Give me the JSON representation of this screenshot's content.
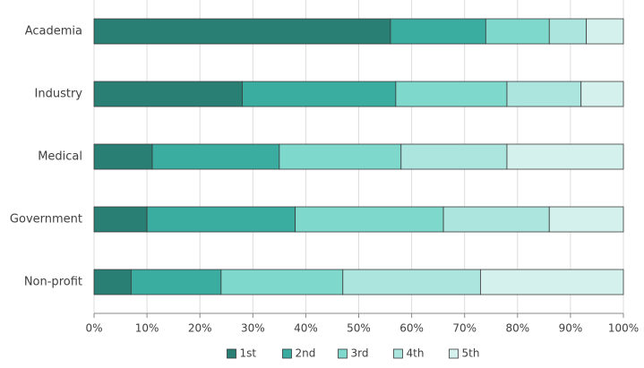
{
  "chart_data": {
    "type": "stacked-barh",
    "categories": [
      "Academia",
      "Industry",
      "Medical",
      "Government",
      "Non-profit"
    ],
    "series": [
      {
        "name": "1st",
        "color": "#2a7f74",
        "values": [
          56,
          28,
          11,
          10,
          7
        ]
      },
      {
        "name": "2nd",
        "color": "#3aada0",
        "values": [
          18,
          29,
          24,
          28,
          17
        ]
      },
      {
        "name": "3rd",
        "color": "#7fd8cc",
        "values": [
          12,
          21,
          23,
          28,
          23
        ]
      },
      {
        "name": "4th",
        "color": "#ace5dd",
        "values": [
          7,
          14,
          20,
          20,
          26
        ]
      },
      {
        "name": "5th",
        "color": "#d5f1ed",
        "values": [
          7,
          8,
          22,
          14,
          27
        ]
      }
    ],
    "xlim": [
      0,
      100
    ],
    "xticks": [
      {
        "value": 0,
        "label": "0%"
      },
      {
        "value": 10,
        "label": "10%"
      },
      {
        "value": 20,
        "label": "20%"
      },
      {
        "value": 30,
        "label": "30%"
      },
      {
        "value": 40,
        "label": "40%"
      },
      {
        "value": 50,
        "label": "50%"
      },
      {
        "value": 60,
        "label": "60%"
      },
      {
        "value": 70,
        "label": "70%"
      },
      {
        "value": 80,
        "label": "80%"
      },
      {
        "value": 90,
        "label": "90%"
      },
      {
        "value": 100,
        "label": "100%"
      }
    ],
    "grid": true,
    "legend": "bottom"
  }
}
